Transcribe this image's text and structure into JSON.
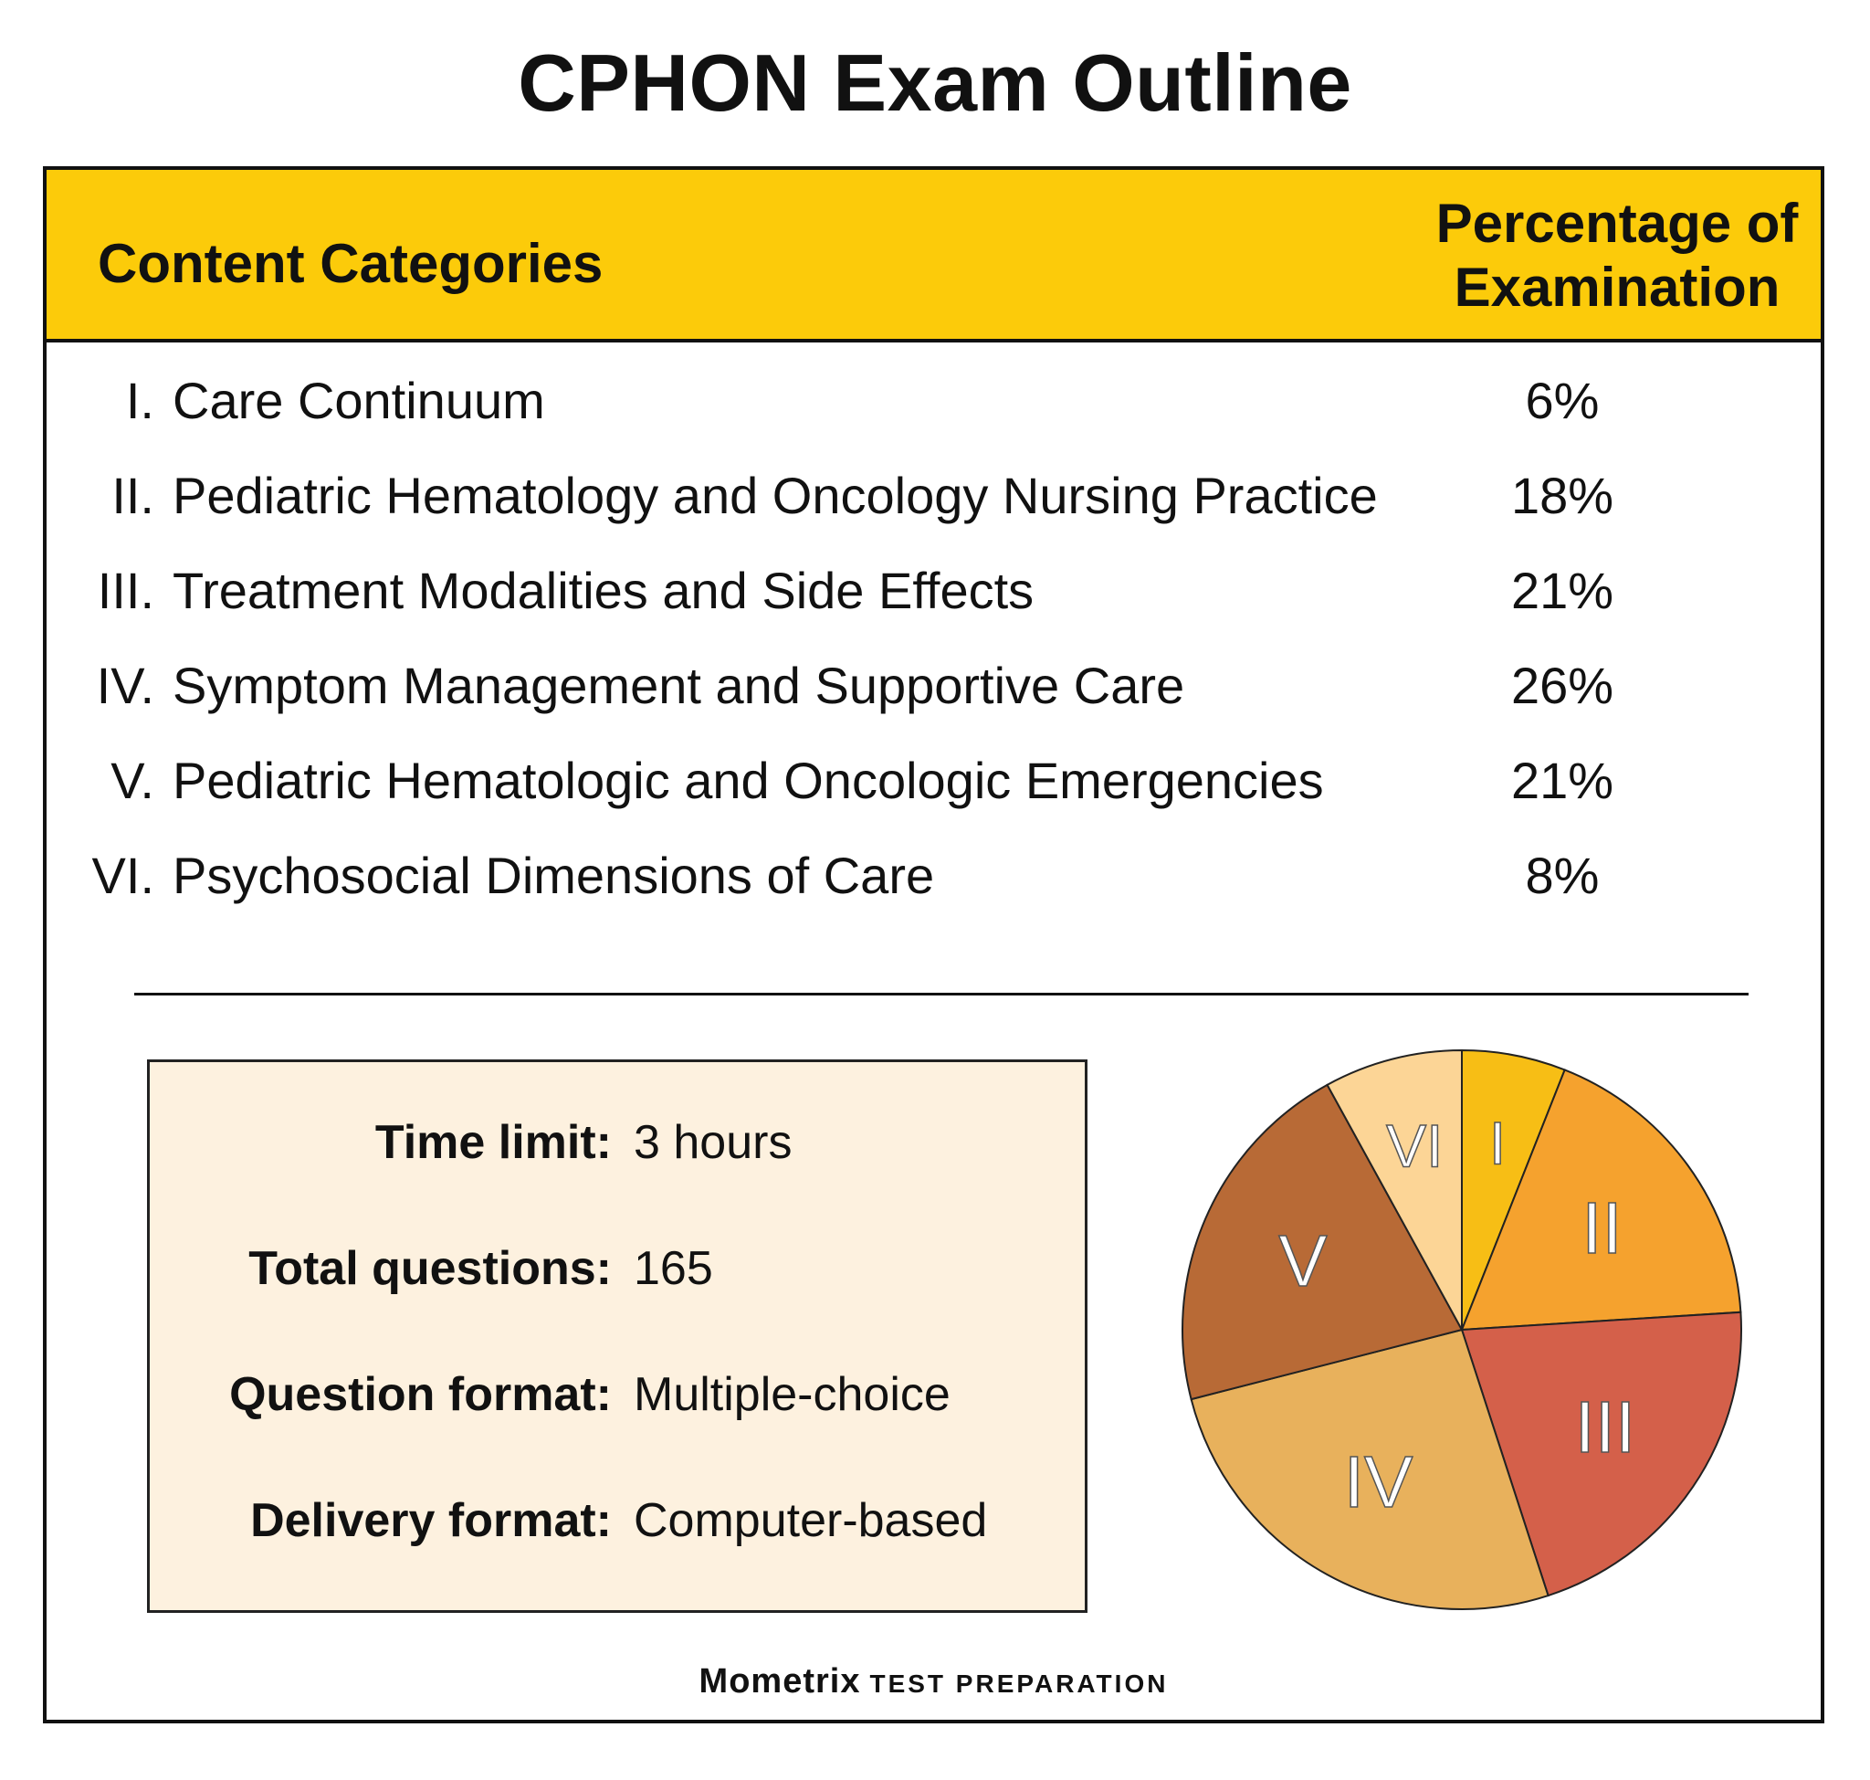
{
  "title": "CPHON Exam Outline",
  "table": {
    "header_left": "Content Categories",
    "header_right_line1": "Percentage of",
    "header_right_line2": "Examination",
    "rows": [
      {
        "num": "I.",
        "label": "Care Continuum",
        "pct": "6%"
      },
      {
        "num": "II.",
        "label": "Pediatric Hematology and Oncology Nursing Practice",
        "pct": "18%"
      },
      {
        "num": "III.",
        "label": "Treatment Modalities and Side Effects",
        "pct": "21%"
      },
      {
        "num": "IV.",
        "label": "Symptom Management and Supportive Care",
        "pct": "26%"
      },
      {
        "num": "V.",
        "label": "Pediatric Hematologic and Oncologic Emergencies",
        "pct": "21%"
      },
      {
        "num": "VI.",
        "label": "Psychosocial Dimensions of Care",
        "pct": "8%"
      }
    ]
  },
  "info": {
    "time_limit_label": "Time limit:",
    "time_limit_value": "3 hours",
    "total_questions_label": "Total questions:",
    "total_questions_value": "165",
    "question_format_label": "Question format:",
    "question_format_value": "Multiple-choice",
    "delivery_format_label": "Delivery format:",
    "delivery_format_value": "Computer-based"
  },
  "brand": {
    "name": "Mometrix",
    "tagline": "TEST PREPARATION"
  },
  "chart_data": {
    "type": "pie",
    "categories": [
      "I",
      "II",
      "III",
      "IV",
      "V",
      "VI"
    ],
    "values": [
      6,
      18,
      21,
      26,
      21,
      8
    ],
    "colors": [
      "#F7BE15",
      "#F5A22E",
      "#D4604A",
      "#E8B15C",
      "#B86A36",
      "#FCD596"
    ],
    "start": "top",
    "direction": "clockwise"
  }
}
